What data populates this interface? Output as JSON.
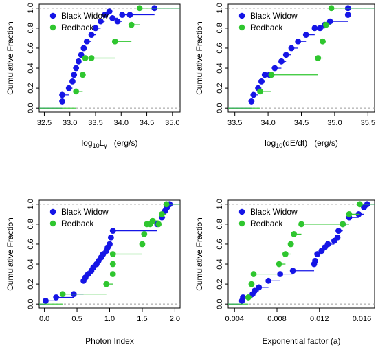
{
  "colors": {
    "black_widow": "#1515e6",
    "redback": "#2fc62f",
    "axis": "#000000",
    "reference_line": "#9a9a9a"
  },
  "chart_data": [
    {
      "type": "step",
      "xlabel": "log10Lγ  (erg/s)",
      "xlabel_parts": {
        "base": "log",
        "sub": "10",
        "main": "L",
        "main_sub": "γ",
        "units": "(erg/s)"
      },
      "ylabel": "Cumulative Fraction",
      "xlim": [
        32.4,
        35.15
      ],
      "ylim": [
        -0.04,
        1.04
      ],
      "xticks": [
        32.5,
        33.0,
        33.5,
        34.0,
        34.5,
        35.0
      ],
      "xtick_labels": [
        "32.5",
        "33.0",
        "33.5",
        "34.0",
        "34.5",
        "35.0"
      ],
      "yticks": [
        0.0,
        0.2,
        0.4,
        0.6,
        0.8,
        1.0
      ],
      "ytick_labels": [
        "0.0",
        "0.2",
        "0.4",
        "0.6",
        "0.8",
        "1.0"
      ],
      "reference_lines": [
        0,
        1
      ],
      "legend": {
        "position": "top-left",
        "entries": [
          "Black Widow",
          "Redback"
        ]
      },
      "series": [
        {
          "name": "Black Widow",
          "color_key": "black_widow",
          "x": [
            32.85,
            32.85,
            32.98,
            33.05,
            33.08,
            33.12,
            33.17,
            33.22,
            33.27,
            33.33,
            33.42,
            33.5,
            33.6,
            33.68,
            33.77,
            33.83,
            33.93,
            34.02,
            34.17,
            34.65
          ],
          "y": [
            0.067,
            0.133,
            0.2,
            0.267,
            0.333,
            0.4,
            0.467,
            0.533,
            0.6,
            0.667,
            0.733,
            0.8,
            0.867,
            0.933,
            0.967,
            0.9,
            0.867,
            0.933,
            0.933,
            1.0
          ]
        },
        {
          "name": "Redback",
          "color_key": "redback",
          "x": [
            33.12,
            33.25,
            33.3,
            33.42,
            33.88,
            34.2,
            34.36
          ],
          "y": [
            0.167,
            0.333,
            0.5,
            0.5,
            0.667,
            0.833,
            1.0
          ]
        }
      ]
    },
    {
      "type": "step",
      "xlabel": "log10(dE/dt)  (erg/s)",
      "xlabel_parts": {
        "base": "log",
        "sub": "10",
        "main": "(dE/dt)",
        "units": "(erg/s)"
      },
      "ylabel": "Cumulative Fraction",
      "xlim": [
        33.4,
        35.6
      ],
      "ylim": [
        -0.04,
        1.04
      ],
      "xticks": [
        33.5,
        34.0,
        34.5,
        35.0,
        35.5
      ],
      "xtick_labels": [
        "33.5",
        "34.0",
        "34.5",
        "35.0",
        "35.5"
      ],
      "yticks": [
        0.0,
        0.2,
        0.4,
        0.6,
        0.8,
        1.0
      ],
      "ytick_labels": [
        "0.0",
        "0.2",
        "0.4",
        "0.6",
        "0.8",
        "1.0"
      ],
      "reference_lines": [
        0,
        1
      ],
      "legend": {
        "position": "top-left",
        "entries": [
          "Black Widow",
          "Redback"
        ]
      },
      "series": [
        {
          "name": "Black Widow",
          "color_key": "black_widow",
          "x": [
            33.75,
            33.78,
            33.85,
            33.9,
            33.95,
            34.02,
            34.1,
            34.2,
            34.27,
            34.35,
            34.45,
            34.57,
            34.7,
            34.78,
            34.85,
            34.93,
            35.2,
            35.2
          ],
          "y": [
            0.067,
            0.133,
            0.2,
            0.267,
            0.333,
            0.333,
            0.4,
            0.467,
            0.533,
            0.6,
            0.667,
            0.733,
            0.8,
            0.8,
            0.833,
            0.867,
            0.933,
            1.0
          ]
        },
        {
          "name": "Redback",
          "color_key": "redback",
          "x": [
            33.88,
            34.05,
            34.75,
            34.82,
            34.87,
            34.95
          ],
          "y": [
            0.167,
            0.333,
            0.5,
            0.667,
            0.833,
            1.0
          ]
        }
      ]
    },
    {
      "type": "step",
      "xlabel": "Photon Index",
      "ylabel": "Cumulative Fraction",
      "xlim": [
        -0.08,
        2.08
      ],
      "ylim": [
        -0.04,
        1.04
      ],
      "xticks": [
        0.0,
        0.5,
        1.0,
        1.5,
        2.0
      ],
      "xtick_labels": [
        "0.0",
        "0.5",
        "1.0",
        "1.5",
        "2.0"
      ],
      "yticks": [
        0.0,
        0.2,
        0.4,
        0.6,
        0.8,
        1.0
      ],
      "ytick_labels": [
        "0.0",
        "0.2",
        "0.4",
        "0.6",
        "0.8",
        "1.0"
      ],
      "reference_lines": [
        0,
        1
      ],
      "legend": {
        "position": "top-left",
        "entries": [
          "Black Widow",
          "Redback"
        ]
      },
      "series": [
        {
          "name": "Black Widow",
          "color_key": "black_widow",
          "x": [
            0.02,
            0.18,
            0.45,
            0.6,
            0.63,
            0.67,
            0.72,
            0.75,
            0.8,
            0.83,
            0.87,
            0.9,
            0.95,
            0.97,
            1.0,
            1.02,
            1.05,
            1.73,
            1.8,
            1.85,
            1.88,
            1.92
          ],
          "y": [
            0.033,
            0.067,
            0.1,
            0.233,
            0.267,
            0.3,
            0.333,
            0.367,
            0.4,
            0.433,
            0.467,
            0.5,
            0.533,
            0.567,
            0.6,
            0.667,
            0.733,
            0.8,
            0.867,
            0.933,
            0.967,
            1.0
          ]
        },
        {
          "name": "Redback",
          "color_key": "redback",
          "x": [
            0.28,
            0.95,
            1.05,
            1.05,
            1.05,
            1.5,
            1.53,
            1.57,
            1.62,
            1.66,
            1.75,
            1.8,
            1.87
          ],
          "y": [
            0.1,
            0.2,
            0.3,
            0.4,
            0.5,
            0.6,
            0.7,
            0.8,
            0.8,
            0.833,
            0.8,
            0.9,
            1.0
          ]
        }
      ]
    },
    {
      "type": "step",
      "xlabel": "Exponential factor (a)",
      "ylabel": "Cumulative Fraction",
      "xlim": [
        0.0034,
        0.0172
      ],
      "ylim": [
        -0.04,
        1.04
      ],
      "xticks": [
        0.004,
        0.008,
        0.012,
        0.016
      ],
      "xtick_labels": [
        "0.004",
        "0.008",
        "0.012",
        "0.016"
      ],
      "yticks": [
        0.0,
        0.2,
        0.4,
        0.6,
        0.8,
        1.0
      ],
      "ytick_labels": [
        "0.0",
        "0.2",
        "0.4",
        "0.6",
        "0.8",
        "1.0"
      ],
      "reference_lines": [
        0,
        1
      ],
      "legend": {
        "position": "top-left",
        "entries": [
          "Black Widow",
          "Redback"
        ]
      },
      "series": [
        {
          "name": "Black Widow",
          "color_key": "black_widow",
          "x": [
            0.0047,
            0.0048,
            0.0057,
            0.0059,
            0.0063,
            0.0072,
            0.0083,
            0.0095,
            0.0115,
            0.0116,
            0.0118,
            0.0122,
            0.0125,
            0.0128,
            0.0134,
            0.0137,
            0.0138,
            0.0142,
            0.0148,
            0.0157,
            0.0162,
            0.0165
          ],
          "y": [
            0.033,
            0.067,
            0.1,
            0.133,
            0.167,
            0.233,
            0.3,
            0.333,
            0.4,
            0.433,
            0.5,
            0.533,
            0.567,
            0.6,
            0.633,
            0.667,
            0.733,
            0.8,
            0.867,
            0.9,
            0.967,
            1.0
          ]
        },
        {
          "name": "Redback",
          "color_key": "redback",
          "x": [
            0.0053,
            0.0056,
            0.0058,
            0.0082,
            0.0088,
            0.0093,
            0.0096,
            0.0103,
            0.0142,
            0.0148,
            0.0158
          ],
          "y": [
            0.067,
            0.2,
            0.3,
            0.4,
            0.5,
            0.6,
            0.7,
            0.8,
            0.8,
            0.9,
            1.0
          ]
        }
      ]
    }
  ]
}
